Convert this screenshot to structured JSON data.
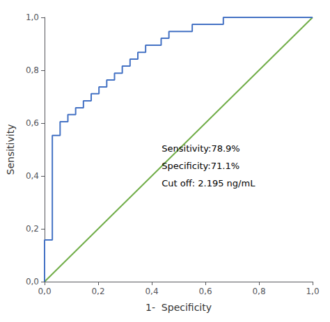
{
  "chart_data": {
    "type": "line",
    "xlabel": "1-  Specificity",
    "ylabel": "Sensitivity",
    "annotations": [
      "Sensitivity:78.9%",
      "Specificity:71.1%",
      "Cut off: 2.195 ng/mL"
    ],
    "series": [
      {
        "color": "#70AD47",
        "x": [
          0,
          1
        ],
        "values": [
          0,
          1
        ]
      },
      {
        "color": "#4472C4",
        "x": [
          0,
          0,
          0.029,
          0.029,
          0.029,
          0.058,
          0.058,
          0.087,
          0.087,
          0.116,
          0.116,
          0.145,
          0.145,
          0.174,
          0.174,
          0.203,
          0.203,
          0.232,
          0.232,
          0.261,
          0.261,
          0.29,
          0.29,
          0.319,
          0.319,
          0.348,
          0.348,
          0.377,
          0.377,
          0.406,
          0.406,
          0.435,
          0.435,
          0.464,
          0.464,
          0.493,
          0.493,
          0.522,
          0.522,
          0.551,
          0.551,
          0.58,
          0.58,
          0.609,
          0.609,
          0.638,
          0.638,
          0.667,
          0.667,
          0.696,
          0.696,
          1.0
        ],
        "values": [
          0,
          0.158,
          0.158,
          0.211,
          0.553,
          0.553,
          0.605,
          0.605,
          0.632,
          0.632,
          0.658,
          0.658,
          0.684,
          0.684,
          0.711,
          0.711,
          0.737,
          0.737,
          0.763,
          0.763,
          0.789,
          0.789,
          0.816,
          0.816,
          0.842,
          0.842,
          0.868,
          0.868,
          0.895,
          0.895,
          0.895,
          0.895,
          0.921,
          0.921,
          0.947,
          0.947,
          0.947,
          0.947,
          0.947,
          0.947,
          0.974,
          0.974,
          0.974,
          0.974,
          0.974,
          0.974,
          0.974,
          0.974,
          1.0,
          1.0,
          1.0,
          1.0
        ]
      }
    ],
    "xlim": [
      0,
      1.0
    ],
    "ylim": [
      0,
      1.0
    ],
    "xticks": [
      {
        "value": 0.0,
        "label": "0,0"
      },
      {
        "value": 0.2,
        "label": "0,2"
      },
      {
        "value": 0.4,
        "label": "0,4"
      },
      {
        "value": 0.6,
        "label": "0,6"
      },
      {
        "value": 0.8,
        "label": "0,8"
      },
      {
        "value": 1.0,
        "label": "1,0"
      }
    ],
    "yticks": [
      {
        "value": 0.0,
        "label": "0,0"
      },
      {
        "value": 0.2,
        "label": "0,2"
      },
      {
        "value": 0.4,
        "label": "0,4"
      },
      {
        "value": 0.6,
        "label": "0,6"
      },
      {
        "value": 0.8,
        "label": "0,8"
      },
      {
        "value": 1.0,
        "label": "1,0"
      }
    ],
    "grid": false
  }
}
